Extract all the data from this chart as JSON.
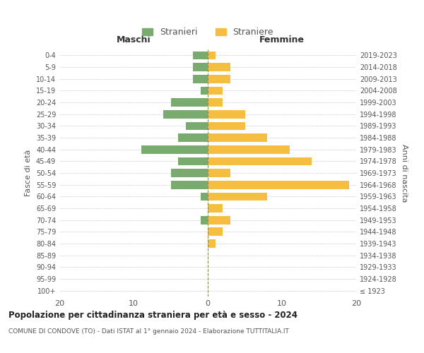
{
  "age_groups": [
    "100+",
    "95-99",
    "90-94",
    "85-89",
    "80-84",
    "75-79",
    "70-74",
    "65-69",
    "60-64",
    "55-59",
    "50-54",
    "45-49",
    "40-44",
    "35-39",
    "30-34",
    "25-29",
    "20-24",
    "15-19",
    "10-14",
    "5-9",
    "0-4"
  ],
  "birth_years": [
    "≤ 1923",
    "1924-1928",
    "1929-1933",
    "1934-1938",
    "1939-1943",
    "1944-1948",
    "1949-1953",
    "1954-1958",
    "1959-1963",
    "1964-1968",
    "1969-1973",
    "1974-1978",
    "1979-1983",
    "1984-1988",
    "1989-1993",
    "1994-1998",
    "1999-2003",
    "2004-2008",
    "2009-2013",
    "2014-2018",
    "2019-2023"
  ],
  "males": [
    0,
    0,
    0,
    0,
    0,
    0,
    1,
    0,
    1,
    5,
    5,
    4,
    9,
    4,
    3,
    6,
    5,
    1,
    2,
    2,
    2
  ],
  "females": [
    0,
    0,
    0,
    0,
    1,
    2,
    3,
    2,
    8,
    19,
    3,
    14,
    11,
    8,
    5,
    5,
    2,
    2,
    3,
    3,
    1
  ],
  "male_color": "#7aab6e",
  "female_color": "#f5be41",
  "title": "Popolazione per cittadinanza straniera per età e sesso - 2024",
  "subtitle": "COMUNE DI CONDOVE (TO) - Dati ISTAT al 1° gennaio 2024 - Elaborazione TUTTITALIA.IT",
  "legend_stranieri": "Stranieri",
  "legend_straniere": "Straniere",
  "xlabel_left": "Maschi",
  "xlabel_right": "Femmine",
  "ylabel": "Fasce di età",
  "ylabel_right": "Anni di nascita",
  "xlim": 20,
  "bg_color": "#ffffff",
  "grid_color": "#cccccc",
  "text_color": "#555555"
}
